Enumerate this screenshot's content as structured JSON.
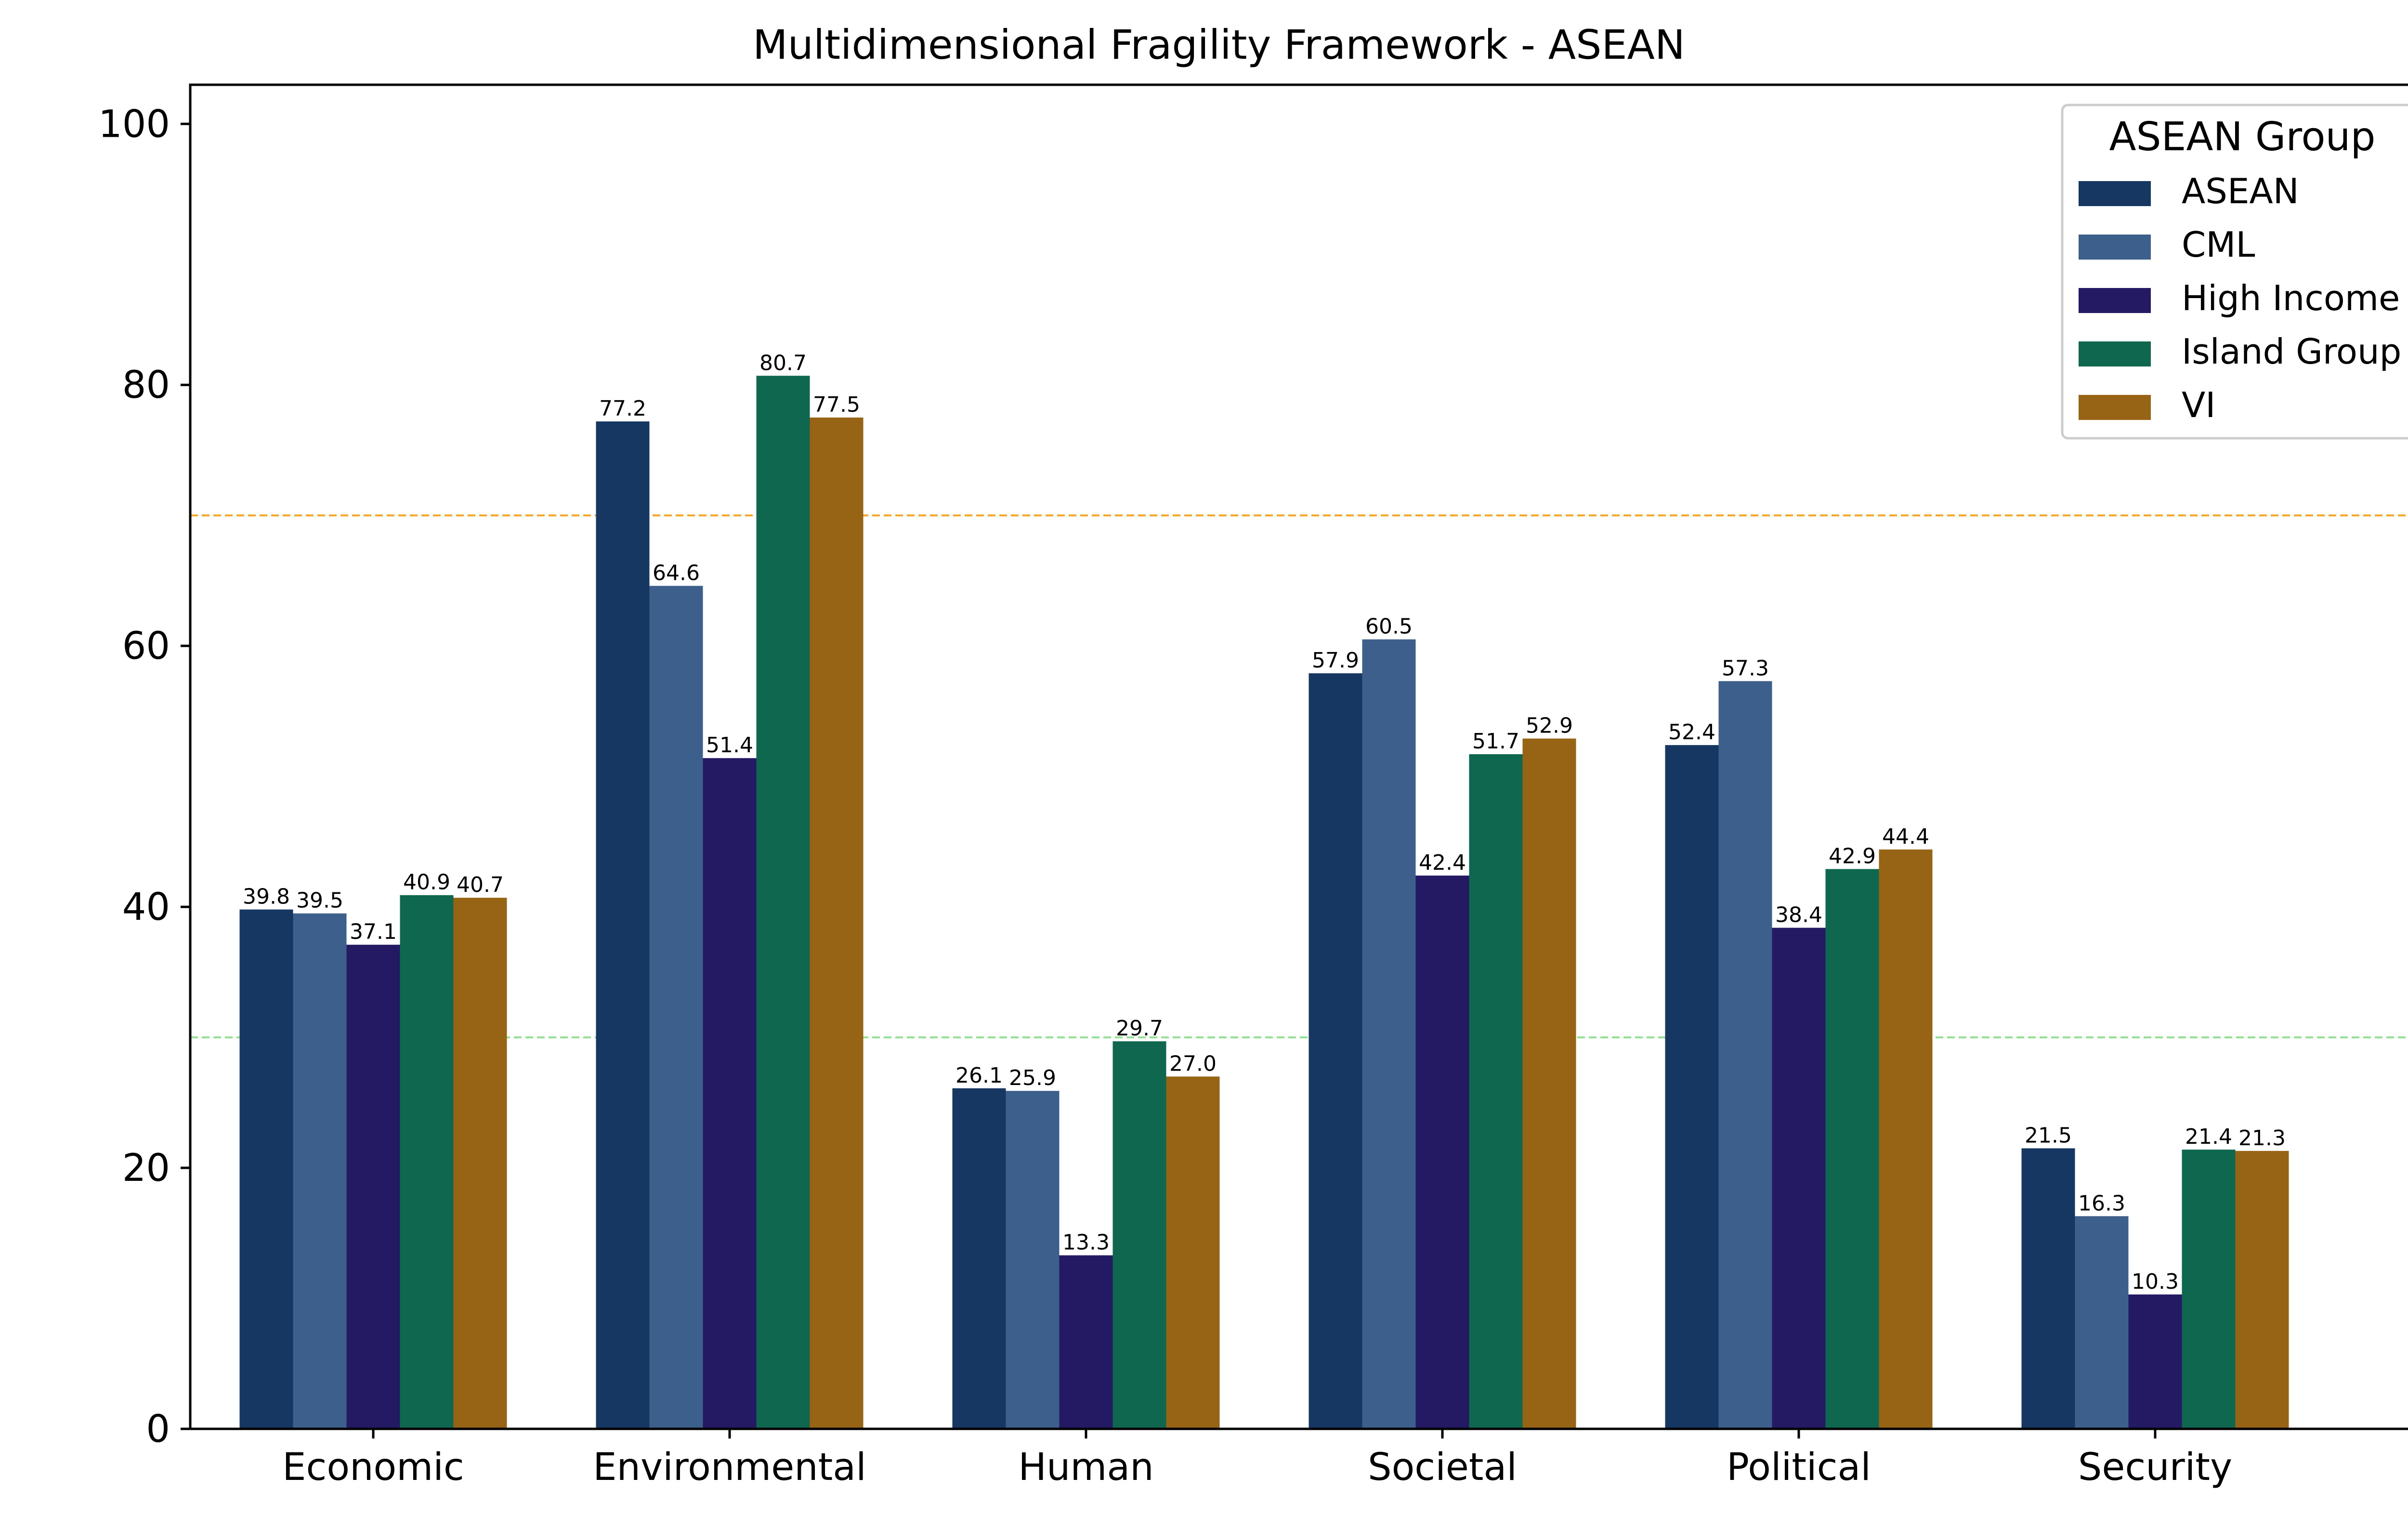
{
  "chart_data": {
    "type": "bar",
    "title": "Multidimensional Fragility Framework - ASEAN",
    "xlabel": "",
    "ylabel": "",
    "ylim": [
      0,
      103
    ],
    "yticks": [
      0,
      20,
      40,
      60,
      80,
      100
    ],
    "categories": [
      "Economic",
      "Environmental",
      "Human",
      "Societal",
      "Political",
      "Security"
    ],
    "series": [
      {
        "name": "ASEAN",
        "color": "#173763",
        "values": [
          39.8,
          77.2,
          26.1,
          57.9,
          52.4,
          21.5
        ]
      },
      {
        "name": "CML",
        "color": "#3c5f8c",
        "values": [
          39.5,
          64.6,
          25.9,
          60.5,
          57.3,
          16.3
        ]
      },
      {
        "name": "High Income",
        "color": "#231a63",
        "values": [
          37.1,
          51.4,
          13.3,
          42.4,
          38.4,
          10.3
        ]
      },
      {
        "name": "Island Group",
        "color": "#0e674e",
        "values": [
          40.9,
          80.7,
          29.7,
          51.7,
          42.9,
          21.4
        ]
      },
      {
        "name": "VI",
        "color": "#976416",
        "values": [
          40.7,
          77.5,
          27.0,
          52.9,
          44.4,
          21.3
        ]
      }
    ],
    "reference_lines": [
      {
        "value": 70,
        "color": "#f5a623",
        "style": "dashed"
      },
      {
        "value": 30,
        "color": "#90e090",
        "style": "dashed"
      }
    ],
    "legend": {
      "title": "ASEAN Group",
      "position": "top-right"
    },
    "grid": false
  }
}
